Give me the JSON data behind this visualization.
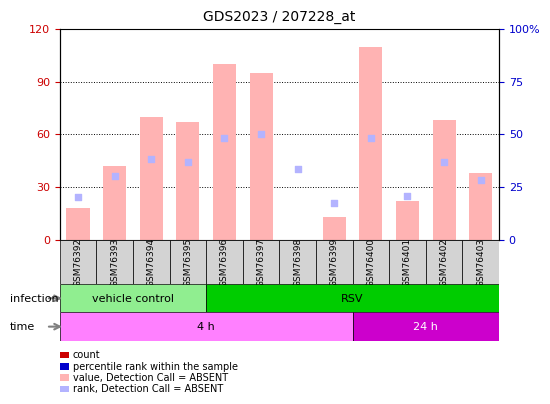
{
  "title": "GDS2023 / 207228_at",
  "samples": [
    "GSM76392",
    "GSM76393",
    "GSM76394",
    "GSM76395",
    "GSM76396",
    "GSM76397",
    "GSM76398",
    "GSM76399",
    "GSM76400",
    "GSM76401",
    "GSM76402",
    "GSM76403"
  ],
  "pink_bar_heights": [
    18,
    42,
    70,
    67,
    100,
    95,
    0,
    13,
    110,
    22,
    68,
    38
  ],
  "blue_square_y": [
    24,
    36,
    46,
    44,
    58,
    60,
    40,
    21,
    58,
    25,
    44,
    34
  ],
  "ylim_left": [
    0,
    120
  ],
  "ylim_right": [
    0,
    100
  ],
  "yticks_left": [
    0,
    30,
    60,
    90,
    120
  ],
  "yticks_right": [
    0,
    25,
    50,
    75,
    100
  ],
  "ytick_labels_left": [
    "0",
    "30",
    "60",
    "90",
    "120"
  ],
  "ytick_labels_right": [
    "0",
    "25",
    "50",
    "75",
    "100%"
  ],
  "infection_labels": [
    {
      "text": "vehicle control",
      "start": 0,
      "end": 4,
      "color": "#90ee90"
    },
    {
      "text": "RSV",
      "start": 4,
      "end": 12,
      "color": "#00cc00"
    }
  ],
  "time_labels": [
    {
      "text": "4 h",
      "start": 0,
      "end": 8,
      "color": "#ff80ff"
    },
    {
      "text": "24 h",
      "start": 8,
      "end": 12,
      "color": "#cc00cc"
    }
  ],
  "plot_bg": "#ffffff",
  "grid_color": "#000000",
  "tick_color_left": "#cc0000",
  "tick_color_right": "#0000cc",
  "bar_color_pink": "#ffb3b3",
  "bar_color_blue": "#b3b3ff",
  "legend_items": [
    {
      "label": "count",
      "color": "#cc0000",
      "marker": "s"
    },
    {
      "label": "percentile rank within the sample",
      "color": "#0000cc",
      "marker": "s"
    },
    {
      "label": "value, Detection Call = ABSENT",
      "color": "#ffb3b3",
      "marker": "s"
    },
    {
      "label": "rank, Detection Call = ABSENT",
      "color": "#b3b3ff",
      "marker": "s"
    }
  ],
  "xlabel_color": "#cc0000",
  "sample_bg": "#d3d3d3",
  "infection_row_label": "infection",
  "time_row_label": "time"
}
